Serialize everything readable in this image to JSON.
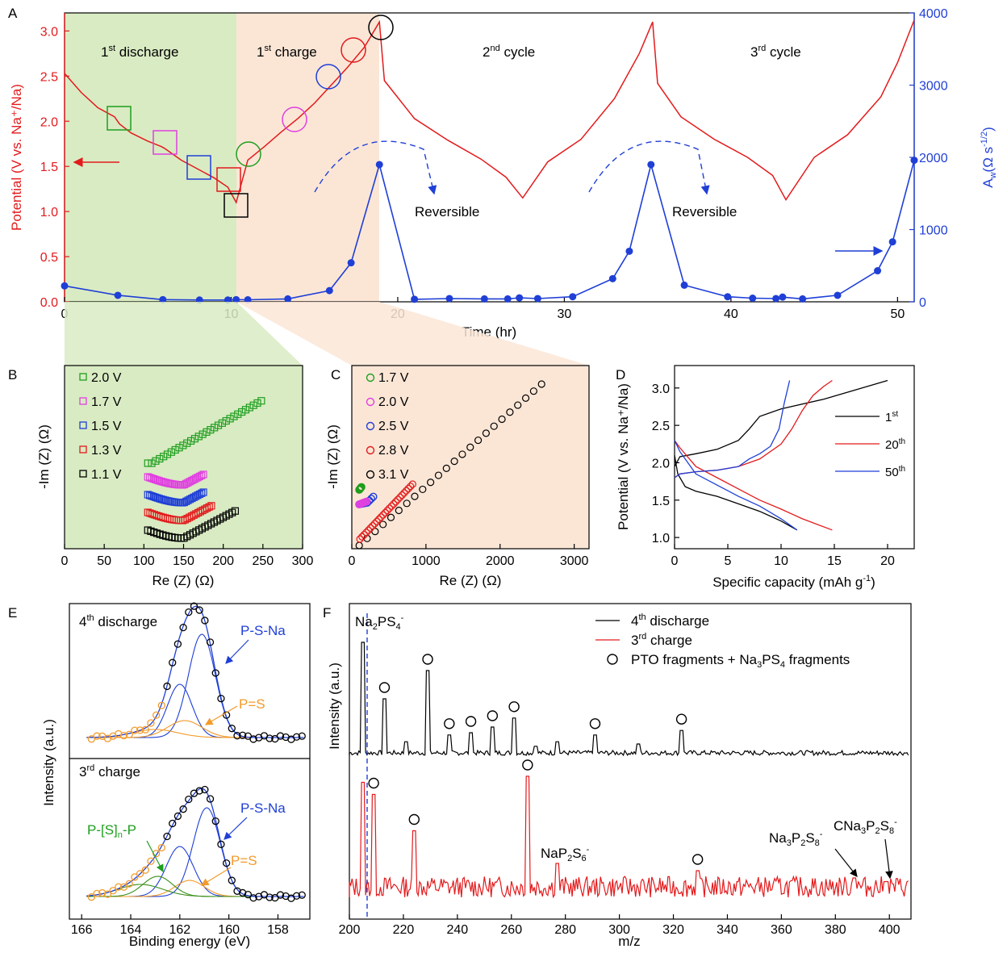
{
  "colors": {
    "red": "#e31a1c",
    "blue": "#1f3fd6",
    "black": "#000000",
    "green": "#1f9e1f",
    "magenta": "#e040e0",
    "orange": "#f39a2a",
    "pink": "#e040e0",
    "greenbg": "#d9ebc3",
    "peachbg": "#fbe6d6",
    "olive": "#3a8f1a"
  },
  "panels": {
    "A": "A",
    "B": "B",
    "C": "C",
    "D": "D",
    "E": "E",
    "F": "F"
  },
  "chart_data": [
    {
      "panel": "A",
      "type": "line",
      "xlabel": "Time (hr)",
      "ylabel_left": "Potential (V vs. Na⁺/Na)",
      "ylabel_right": "A_w (Ω s^-1/2)",
      "xlim": [
        0,
        51
      ],
      "ylim_left": [
        0,
        3.2
      ],
      "ylim_right": [
        0,
        4000
      ],
      "xticks": [
        0,
        10,
        20,
        30,
        40,
        50
      ],
      "yticks_left": [
        0.0,
        0.5,
        1.0,
        1.5,
        2.0,
        2.5,
        3.0
      ],
      "yticks_right": [
        0,
        1000,
        2000,
        3000,
        4000
      ],
      "regions": [
        "1st discharge",
        "1st charge",
        "2nd cycle",
        "3rd cycle"
      ],
      "annotations": [
        "Reversible",
        "Reversible"
      ],
      "series": [
        {
          "axis": "left",
          "x": [
            0,
            1,
            2,
            3,
            3.3,
            4,
            5,
            5.8,
            6,
            7,
            8,
            9,
            9.8,
            10.3,
            11,
            12,
            13,
            14,
            15,
            16,
            17,
            18,
            18.9,
            19.2,
            21,
            23,
            25,
            26.5,
            27.5,
            29,
            31,
            33,
            34.5,
            35.3,
            35.6,
            37,
            39,
            41,
            42.5,
            43.3,
            45,
            47,
            49,
            50,
            50.7,
            51
          ],
          "y": [
            2.53,
            2.32,
            2.15,
            2.05,
            1.97,
            1.87,
            1.78,
            1.72,
            1.7,
            1.57,
            1.47,
            1.37,
            1.27,
            1.1,
            1.57,
            1.72,
            1.88,
            2.03,
            2.2,
            2.4,
            2.6,
            2.82,
            3.1,
            2.45,
            2.03,
            1.79,
            1.58,
            1.38,
            1.15,
            1.55,
            1.8,
            2.25,
            2.75,
            3.1,
            2.42,
            2.05,
            1.8,
            1.6,
            1.4,
            1.13,
            1.6,
            1.85,
            2.27,
            2.65,
            2.98,
            3.12
          ]
        },
        {
          "axis": "right",
          "x": [
            0,
            3.2,
            5.9,
            8.1,
            9.8,
            10.3,
            11,
            13.4,
            15.9,
            17.2,
            18.9,
            21,
            23.1,
            25.2,
            26.6,
            27.3,
            28.4,
            30.5,
            32.9,
            33.9,
            35.2,
            37.2,
            39.8,
            41.3,
            42.7,
            43.1,
            44.3,
            46.4,
            48.8,
            49.7,
            51
          ],
          "y": [
            220,
            90,
            30,
            25,
            25,
            30,
            28,
            40,
            155,
            540,
            1900,
            35,
            45,
            40,
            40,
            55,
            45,
            70,
            320,
            700,
            1900,
            230,
            70,
            50,
            45,
            65,
            40,
            90,
            430,
            830,
            1960
          ]
        }
      ]
    },
    {
      "panel": "B",
      "type": "scatter",
      "xlabel": "Re (Z) (Ω)",
      "ylabel": "-Im (Z) (Ω)",
      "xlim": [
        0,
        300
      ],
      "xticks": [
        0,
        50,
        100,
        150,
        200,
        250,
        300
      ],
      "series": [
        {
          "name": "2.0 V",
          "x_range": [
            105,
            248
          ],
          "offset": 170
        },
        {
          "name": "1.7 V",
          "x_range": [
            105,
            175
          ],
          "offset": 135
        },
        {
          "name": "1.5 V",
          "x_range": [
            105,
            175
          ],
          "offset": 100
        },
        {
          "name": "1.3 V",
          "x_range": [
            105,
            185
          ],
          "offset": 65
        },
        {
          "name": "1.1 V",
          "x_range": [
            105,
            215
          ],
          "offset": 30
        }
      ]
    },
    {
      "panel": "C",
      "type": "scatter",
      "xlabel": "Re (Z) (Ω)",
      "ylabel": "-Im (Z) (Ω)",
      "xlim": [
        0,
        3200
      ],
      "xticks": [
        0,
        1000,
        2000,
        3000
      ],
      "series": [
        {
          "name": "1.7 V"
        },
        {
          "name": "2.0 V"
        },
        {
          "name": "2.5 V"
        },
        {
          "name": "2.8 V",
          "x_range": [
            100,
            820
          ]
        },
        {
          "name": "3.1 V",
          "x_range": [
            100,
            2560
          ]
        }
      ]
    },
    {
      "panel": "D",
      "type": "line",
      "xlabel": "Specific capacity (mAh g⁻¹)",
      "ylabel": "Potential (V vs. Na⁺/Na)",
      "xlim": [
        0,
        22.5
      ],
      "ylim": [
        0.85,
        3.3
      ],
      "xticks": [
        0,
        5,
        10,
        15,
        20
      ],
      "yticks": [
        1.0,
        1.5,
        2.0,
        2.5,
        3.0
      ],
      "series": [
        {
          "name": "1st",
          "discharge_x": [
            0,
            0.3,
            1,
            2,
            4,
            6,
            8,
            10,
            11.5
          ],
          "discharge_y": [
            2.1,
            1.85,
            1.68,
            1.62,
            1.55,
            1.45,
            1.35,
            1.22,
            1.1
          ],
          "charge_x": [
            0,
            0.5,
            2,
            4,
            6,
            7,
            8,
            10,
            14,
            20
          ],
          "charge_y": [
            1.95,
            2.08,
            2.12,
            2.18,
            2.3,
            2.45,
            2.62,
            2.72,
            2.85,
            3.1
          ]
        },
        {
          "name": "20th",
          "discharge_x": [
            0,
            0.5,
            2,
            4,
            6,
            8,
            10,
            12,
            14.8
          ],
          "discharge_y": [
            2.3,
            2.2,
            1.95,
            1.8,
            1.65,
            1.5,
            1.38,
            1.25,
            1.1
          ],
          "charge_x": [
            0,
            0.5,
            2,
            4,
            6,
            8,
            10,
            11,
            12,
            13,
            14,
            14.8
          ],
          "charge_y": [
            1.8,
            1.85,
            1.88,
            1.9,
            1.95,
            2.05,
            2.25,
            2.45,
            2.7,
            2.9,
            3.02,
            3.1
          ]
        },
        {
          "name": "50th",
          "discharge_x": [
            0,
            0.5,
            2,
            4,
            6,
            8,
            10,
            11.5
          ],
          "discharge_y": [
            2.3,
            2.15,
            1.85,
            1.7,
            1.55,
            1.42,
            1.25,
            1.1
          ],
          "charge_x": [
            0,
            0.5,
            2,
            4,
            6,
            7,
            8,
            9,
            9.8,
            10.3,
            10.8
          ],
          "charge_y": [
            1.8,
            1.85,
            1.88,
            1.9,
            1.95,
            2.05,
            2.12,
            2.22,
            2.45,
            2.8,
            3.1
          ]
        }
      ]
    },
    {
      "panel": "E",
      "type": "scatter",
      "xlabel": "Binding energy (eV)",
      "ylabel": "Intensity (a.u.)",
      "xlim": [
        166.5,
        156.7
      ],
      "xticks": [
        166,
        164,
        162,
        160,
        158
      ],
      "subplots": [
        {
          "title": "4th discharge",
          "labels": [
            "P-S-Na",
            "P=S"
          ]
        },
        {
          "title": "3rd charge",
          "labels": [
            "P-S-Na",
            "P=S",
            "P-[S]n-P"
          ]
        }
      ]
    },
    {
      "panel": "F",
      "type": "line",
      "xlabel": "m/z",
      "ylabel": "Intensity",
      "xlim": [
        200,
        408
      ],
      "xticks": [
        200,
        220,
        240,
        260,
        280,
        300,
        320,
        340,
        360,
        380,
        400
      ],
      "legend": [
        "4th discharge",
        "3rd charge",
        "PTO fragments + Na3PS4 fragments"
      ],
      "peak_labels": [
        "Na2PS4-",
        "NaP2S6-",
        "Na3P2S8-",
        "CNa3P2S8-"
      ],
      "series": [
        {
          "name": "4th discharge",
          "peaks_x": [
            205,
            213,
            221,
            229,
            237,
            245,
            253,
            261,
            269,
            277,
            291,
            307,
            323
          ],
          "peaks_h": [
            1.0,
            0.5,
            0.12,
            0.75,
            0.18,
            0.2,
            0.25,
            0.33,
            0.08,
            0.12,
            0.18,
            0.1,
            0.22
          ]
        },
        {
          "name": "3rd charge",
          "peaks_x": [
            205,
            209,
            224,
            266,
            277,
            329,
            387,
            399
          ],
          "peaks_h": [
            0.95,
            0.85,
            0.55,
            1.0,
            0.28,
            0.22,
            0.16,
            0.13
          ]
        }
      ]
    }
  ],
  "text": {
    "a_r1": "1",
    "a_r1s": "st",
    "a_r1t": " discharge",
    "a_r2": "1",
    "a_r2s": "st",
    "a_r2t": " charge",
    "a_r3": "2",
    "a_r3s": "nd",
    "a_r3t": " cycle",
    "a_r4": "3",
    "a_r4s": "rd",
    "a_r4t": " cycle",
    "rev1": "Reversible",
    "rev2": "Reversible",
    "a_xlabel": "Time (hr)",
    "a_ylabel": "Potential (V vs. Na⁺/Na)",
    "a_ylabel_r1": "A",
    "a_ylabel_r2": "w",
    "a_ylabel_r3": "(Ω s",
    "a_ylabel_r4": "-1/2",
    "a_ylabel_r5": ")",
    "b_xlabel": "Re (Z) (Ω)",
    "b_ylabel": "-Im (Z) (Ω)",
    "c_xlabel": "Re (Z) (Ω)",
    "c_ylabel": "-Im (Z) (Ω)",
    "d_xlabel1": "Specific capacity (mAh g",
    "d_xlabel2": "-1",
    "d_xlabel3": ")",
    "d_ylabel": "Potential (V vs. Na⁺/Na)",
    "d_leg1": "1",
    "d_leg1s": "st",
    "d_leg2": "20",
    "d_leg2s": "th",
    "d_leg3": "50",
    "d_leg3s": "th",
    "e_t1": "4",
    "e_t1s": "th",
    "e_t1t": " discharge",
    "e_t2": "3",
    "e_t2s": "rd",
    "e_t2t": " charge",
    "e_psna1": "P-S-Na",
    "e_ps1": "P=S",
    "e_psna2": "P-S-Na",
    "e_ps2": "P=S",
    "e_psnp1": "P-[S]",
    "e_psnp2": "n",
    "e_psnp3": "-P",
    "e_xlabel": "Binding energy (eV)",
    "e_ylabel": "Intensity (a.u.)",
    "f_leg1a": "4",
    "f_leg1b": "th",
    "f_leg1c": " discharge",
    "f_leg2a": "3",
    "f_leg2b": "rd",
    "f_leg2c": " charge",
    "f_leg3a": "PTO fragments + Na",
    "f_leg3b": "3",
    "f_leg3c": "PS",
    "f_leg3d": "4",
    "f_leg3e": " fragments",
    "f_xlabel": "m/z",
    "f_ylabel": "Intensity (a.u.)",
    "f_pk1a": "Na",
    "f_pk1b": "2",
    "f_pk1c": "PS",
    "f_pk1d": "4",
    "f_pk1e": "-",
    "f_pk2a": "NaP",
    "f_pk2b": "2",
    "f_pk2c": "S",
    "f_pk2d": "6",
    "f_pk2e": "-",
    "f_pk3a": "Na",
    "f_pk3b": "3",
    "f_pk3c": "P",
    "f_pk3d": "2",
    "f_pk3e": "S",
    "f_pk3f": "8",
    "f_pk3g": "-",
    "f_pk4a": "CNa",
    "f_pk4b": "3",
    "f_pk4c": "P",
    "f_pk4d": "2",
    "f_pk4e": "S",
    "f_pk4f": "8",
    "f_pk4g": "-",
    "b_l1": "2.0 V",
    "b_l2": "1.7 V",
    "b_l3": "1.5 V",
    "b_l4": "1.3 V",
    "b_l5": "1.1 V",
    "c_l1": "1.7 V",
    "c_l2": "2.0 V",
    "c_l3": "2.5 V",
    "c_l4": "2.8 V",
    "c_l5": "3.1 V"
  }
}
